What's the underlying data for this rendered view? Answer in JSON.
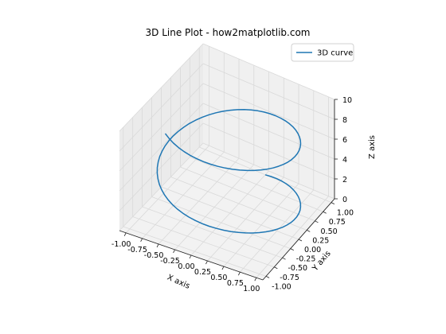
{
  "chart_data": {
    "type": "line3d",
    "title": "3D Line Plot - how2matplotlib.com",
    "xlabel": "X axis",
    "ylabel": "Y axis",
    "zlabel": "Z axis",
    "xlim": [
      -1.1,
      1.1
    ],
    "ylim": [
      -1.1,
      1.1
    ],
    "zlim": [
      0,
      10
    ],
    "xticks": [
      "-1.00",
      "-0.75",
      "-0.50",
      "-0.25",
      "0.00",
      "0.25",
      "0.50",
      "0.75",
      "1.00"
    ],
    "yticks": [
      "-1.00",
      "-0.75",
      "-0.50",
      "-0.25",
      "0.00",
      "0.25",
      "0.50",
      "0.75",
      "1.00"
    ],
    "zticks": [
      "0",
      "2",
      "4",
      "6",
      "8",
      "10"
    ],
    "grid": true,
    "legend_position": "top-right",
    "series": [
      {
        "name": "3D curve",
        "color": "#1f77b4",
        "parametric": {
          "x": "sin(t)",
          "y": "cos(t)",
          "z": "t",
          "t_range": [
            0,
            10
          ],
          "samples": 100
        }
      }
    ]
  }
}
